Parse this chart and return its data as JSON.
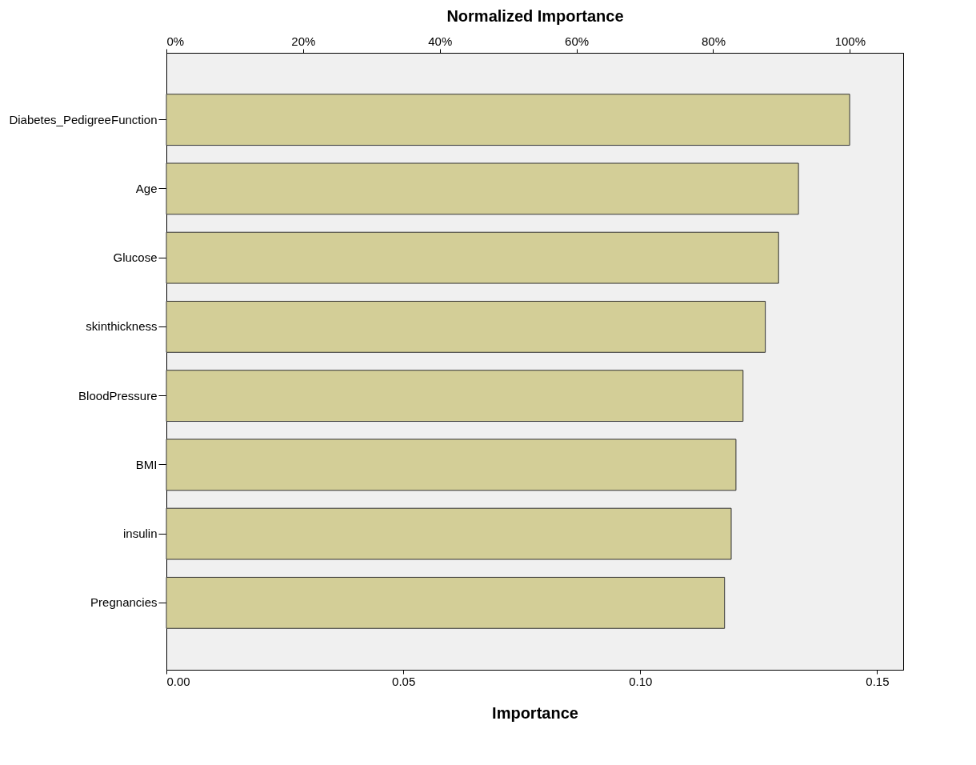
{
  "chart_data": {
    "type": "bar",
    "orientation": "horizontal",
    "categories": [
      "Diabetes_PedigreeFunction",
      "Age",
      "Glucose",
      "skinthickness",
      "BloodPressure",
      "BMI",
      "insulin",
      "Pregnancies"
    ],
    "values": [
      0.1442,
      0.1334,
      0.1292,
      0.1264,
      0.1217,
      0.1202,
      0.1192,
      0.1178
    ],
    "color": "#d3ce97",
    "xlabel": "Importance",
    "x2label": "Normalized Importance",
    "xlim": [
      0,
      0.1555
    ],
    "xticks": [
      {
        "value": 0,
        "label": "0.00"
      },
      {
        "value": 0.05,
        "label": "0.05"
      },
      {
        "value": 0.1,
        "label": "0.10"
      },
      {
        "value": 0.15,
        "label": "0.15"
      }
    ],
    "x2lim": [
      0,
      107.8
    ],
    "x2ticks": [
      {
        "value": 0,
        "label": "0%"
      },
      {
        "value": 20,
        "label": "20%"
      },
      {
        "value": 40,
        "label": "40%"
      },
      {
        "value": 60,
        "label": "60%"
      },
      {
        "value": 80,
        "label": "80%"
      },
      {
        "value": 100,
        "label": "100%"
      }
    ]
  }
}
